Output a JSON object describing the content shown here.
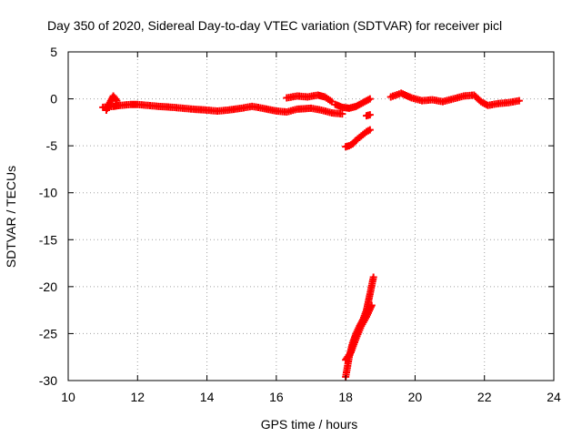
{
  "chart_data": {
    "type": "scatter",
    "title": "Day 350 of 2020, Sidereal Day-to-day VTEC variation (SDTVAR) for receiver picl",
    "xlabel": "GPS time / hours",
    "ylabel": "SDTVAR / TECUs",
    "xlim": [
      10,
      24
    ],
    "ylim": [
      -30,
      5
    ],
    "xticks": [
      10,
      12,
      14,
      16,
      18,
      20,
      22,
      24
    ],
    "yticks": [
      5,
      0,
      -5,
      -10,
      -15,
      -20,
      -25,
      -30
    ],
    "grid": true,
    "legend": "none",
    "marker": "plus",
    "series_color": "#ff0000",
    "segments": [
      {
        "x": [
          11.0,
          11.3,
          11.5,
          11.8,
          12.0,
          12.3,
          12.6,
          13.0,
          13.3,
          13.6,
          14.0,
          14.3,
          14.6,
          15.0,
          15.3,
          15.6,
          16.0,
          16.3,
          16.6,
          17.0,
          17.3,
          17.6,
          17.9
        ],
        "y": [
          -0.9,
          -0.8,
          -0.7,
          -0.6,
          -0.6,
          -0.7,
          -0.8,
          -0.9,
          -1.0,
          -1.1,
          -1.2,
          -1.3,
          -1.2,
          -1.0,
          -0.8,
          -1.0,
          -1.3,
          -1.4,
          -1.1,
          -1.0,
          -1.2,
          -1.5,
          -1.6
        ]
      },
      {
        "x": [
          11.1,
          11.2,
          11.3,
          11.4
        ],
        "y": [
          -1.2,
          -0.4,
          0.3,
          -0.2
        ]
      },
      {
        "x": [
          16.3,
          16.6,
          16.9,
          17.2,
          17.4,
          17.6
        ],
        "y": [
          0.1,
          0.3,
          0.2,
          0.4,
          0.2,
          -0.3
        ]
      },
      {
        "x": [
          17.7,
          17.9,
          18.1,
          18.3,
          18.5,
          18.7
        ],
        "y": [
          -0.6,
          -0.9,
          -1.0,
          -0.8,
          -0.4,
          0.0
        ]
      },
      {
        "x": [
          18.6,
          18.7
        ],
        "y": [
          -1.8,
          -1.7
        ]
      },
      {
        "x": [
          18.0,
          18.1,
          18.2,
          18.3,
          18.4,
          18.5,
          18.6,
          18.7
        ],
        "y": [
          -5.1,
          -5.0,
          -4.8,
          -4.4,
          -4.1,
          -3.8,
          -3.5,
          -3.3
        ]
      },
      {
        "x": [
          19.3,
          19.6,
          19.9,
          20.2,
          20.5,
          20.8,
          21.1,
          21.4,
          21.7,
          21.9,
          22.1,
          22.4,
          22.7,
          23.0
        ],
        "y": [
          0.2,
          0.6,
          0.1,
          -0.2,
          -0.1,
          -0.3,
          0.0,
          0.3,
          0.4,
          -0.3,
          -0.7,
          -0.5,
          -0.4,
          -0.2
        ]
      },
      {
        "x": [
          18.0,
          18.1,
          18.2,
          18.3,
          18.4,
          18.5,
          18.6,
          18.7,
          18.8
        ],
        "y": [
          -29.6,
          -27.5,
          -26.0,
          -25.0,
          -24.2,
          -23.5,
          -22.5,
          -20.8,
          -19.0
        ]
      },
      {
        "x": [
          18.0,
          18.15,
          18.3,
          18.45,
          18.6,
          18.75
        ],
        "y": [
          -27.8,
          -27.0,
          -25.5,
          -24.2,
          -23.2,
          -22.0
        ]
      }
    ]
  }
}
